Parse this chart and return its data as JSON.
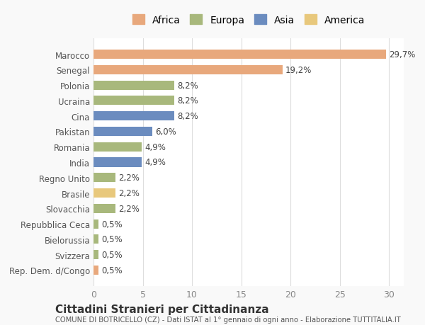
{
  "categories": [
    "Rep. Dem. d/Congo",
    "Svizzera",
    "Bielorussia",
    "Repubblica Ceca",
    "Slovacchia",
    "Brasile",
    "Regno Unito",
    "India",
    "Romania",
    "Pakistan",
    "Cina",
    "Ucraina",
    "Polonia",
    "Senegal",
    "Marocco"
  ],
  "values": [
    0.5,
    0.5,
    0.5,
    0.5,
    2.2,
    2.2,
    2.2,
    4.9,
    4.9,
    6.0,
    8.2,
    8.2,
    8.2,
    19.2,
    29.7
  ],
  "labels": [
    "0,5%",
    "0,5%",
    "0,5%",
    "0,5%",
    "2,2%",
    "2,2%",
    "2,2%",
    "4,9%",
    "4,9%",
    "6,0%",
    "8,2%",
    "8,2%",
    "8,2%",
    "19,2%",
    "29,7%"
  ],
  "colors": [
    "#e8a87c",
    "#a8b87c",
    "#a8b87c",
    "#a8b87c",
    "#a8b87c",
    "#e8c87c",
    "#a8b87c",
    "#6b8cbf",
    "#a8b87c",
    "#6b8cbf",
    "#6b8cbf",
    "#a8b87c",
    "#a8b87c",
    "#e8a87c",
    "#e8a87c"
  ],
  "continent_colors": {
    "Africa": "#e8a87c",
    "Europa": "#a8b87c",
    "Asia": "#6b8cbf",
    "America": "#e8c87c"
  },
  "xlim": [
    0,
    31.5
  ],
  "xticks": [
    0,
    5,
    10,
    15,
    20,
    25,
    30
  ],
  "title": "Cittadini Stranieri per Cittadinanza",
  "subtitle": "COMUNE DI BOTRICELLO (CZ) - Dati ISTAT al 1° gennaio di ogni anno - Elaborazione TUTTITALIA.IT",
  "background_color": "#f9f9f9",
  "bar_background": "#ffffff",
  "grid_color": "#dddddd"
}
